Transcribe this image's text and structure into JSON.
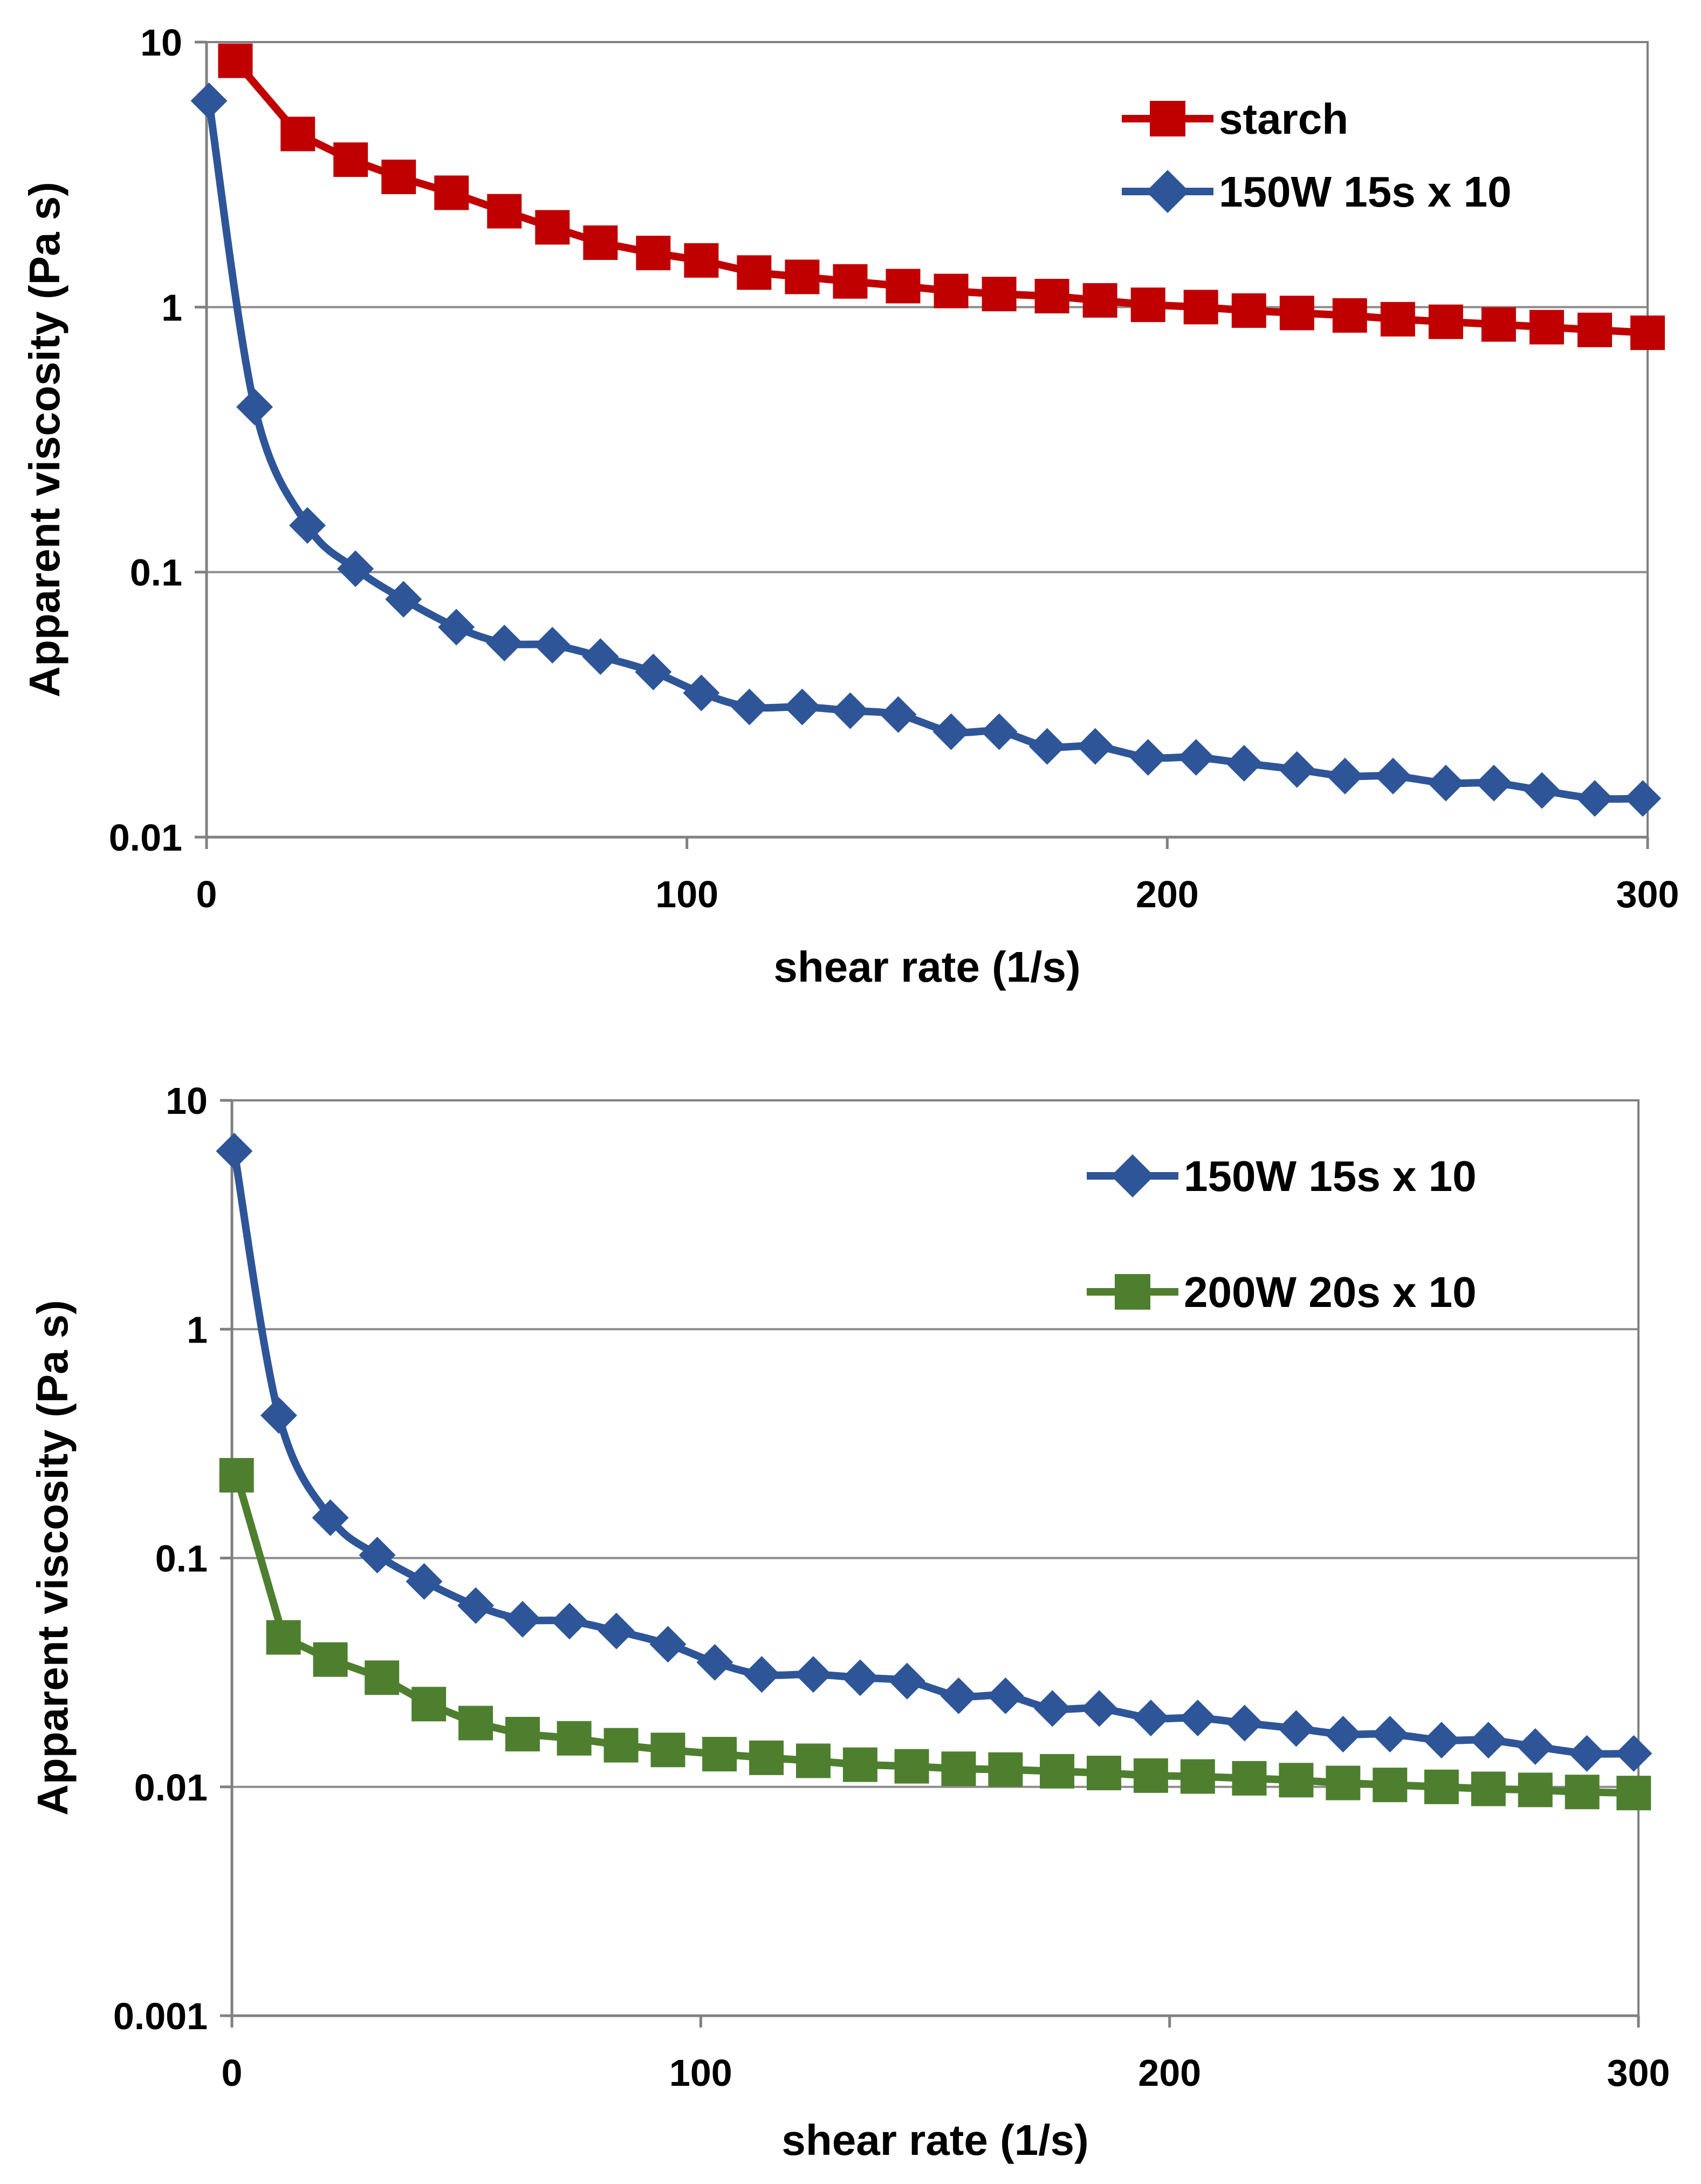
{
  "chart_data": [
    {
      "type": "line",
      "title": "",
      "xlabel": "shear rate (1/s)",
      "ylabel": "Apparent viscosity (Pa s)",
      "xlim": [
        0,
        300
      ],
      "ylim": [
        0.01,
        10
      ],
      "yscale": "log",
      "x_ticks": [
        "0",
        "100",
        "200",
        "300"
      ],
      "y_ticks": [
        "0.01",
        "0.1",
        "1",
        "10"
      ],
      "grid": "horizontal",
      "legend_position": "top-right",
      "series": [
        {
          "name": "starch",
          "color": "#C00000",
          "marker": "square",
          "smooth": false,
          "x": [
            6,
            19,
            30,
            40,
            51,
            62,
            72,
            82,
            93,
            103,
            114,
            124,
            134,
            145,
            155,
            165,
            176,
            186,
            196,
            207,
            217,
            227,
            238,
            248,
            258,
            269,
            279,
            289,
            300
          ],
          "y": [
            8.5,
            4.5,
            3.6,
            3.1,
            2.7,
            2.3,
            2.0,
            1.75,
            1.6,
            1.5,
            1.35,
            1.3,
            1.25,
            1.2,
            1.15,
            1.12,
            1.1,
            1.06,
            1.02,
            1.0,
            0.97,
            0.95,
            0.93,
            0.9,
            0.88,
            0.86,
            0.84,
            0.82,
            0.8
          ]
        },
        {
          "name": "150W 15s x 10",
          "color": "#2E5597",
          "marker": "diamond",
          "smooth": true,
          "x": [
            0.5,
            10,
            21,
            31,
            41,
            52,
            62,
            72,
            82,
            93,
            103,
            113,
            124,
            134,
            144,
            155,
            165,
            175,
            185,
            196,
            206,
            216,
            227,
            237,
            247,
            258,
            268,
            278,
            289,
            299
          ],
          "y": [
            6.0,
            0.42,
            0.15,
            0.103,
            0.079,
            0.062,
            0.054,
            0.053,
            0.048,
            0.042,
            0.035,
            0.031,
            0.031,
            0.03,
            0.029,
            0.025,
            0.025,
            0.022,
            0.022,
            0.02,
            0.02,
            0.019,
            0.018,
            0.017,
            0.017,
            0.016,
            0.016,
            0.015,
            0.014,
            0.014
          ]
        }
      ]
    },
    {
      "type": "line",
      "title": "",
      "xlabel": "shear rate (1/s)",
      "ylabel": "Apparent viscosity (Pa s)",
      "xlim": [
        0,
        300
      ],
      "ylim": [
        0.001,
        10
      ],
      "yscale": "log",
      "x_ticks": [
        "0",
        "100",
        "200",
        "300"
      ],
      "y_ticks": [
        "0.001",
        "0.01",
        "0.1",
        "1",
        "10"
      ],
      "grid": "horizontal",
      "legend_position": "top-right",
      "series": [
        {
          "name": "150W 15s x 10",
          "color": "#2E5597",
          "marker": "diamond",
          "smooth": true,
          "x": [
            0.5,
            10,
            21,
            31,
            41,
            52,
            62,
            72,
            82,
            93,
            103,
            113,
            124,
            134,
            144,
            155,
            165,
            175,
            185,
            196,
            206,
            216,
            227,
            237,
            247,
            258,
            268,
            278,
            289,
            299
          ],
          "y": [
            6.0,
            0.42,
            0.15,
            0.103,
            0.079,
            0.062,
            0.054,
            0.053,
            0.048,
            0.042,
            0.035,
            0.031,
            0.031,
            0.03,
            0.029,
            0.025,
            0.025,
            0.022,
            0.022,
            0.02,
            0.02,
            0.019,
            0.018,
            0.017,
            0.017,
            0.016,
            0.016,
            0.015,
            0.014,
            0.014
          ]
        },
        {
          "name": "200W 20s x 10",
          "color": "#4E7F2F",
          "marker": "square",
          "smooth": false,
          "x": [
            1,
            11,
            21,
            32,
            42,
            52,
            62,
            73,
            83,
            93,
            104,
            114,
            124,
            134,
            145,
            155,
            165,
            176,
            186,
            196,
            206,
            217,
            227,
            237,
            247,
            258,
            268,
            278,
            288,
            299
          ],
          "y": [
            0.23,
            0.045,
            0.036,
            0.03,
            0.023,
            0.019,
            0.017,
            0.0163,
            0.0152,
            0.0145,
            0.0139,
            0.0134,
            0.013,
            0.0125,
            0.0123,
            0.012,
            0.0119,
            0.0117,
            0.0115,
            0.0112,
            0.0111,
            0.0109,
            0.0107,
            0.0104,
            0.0102,
            0.01,
            0.0098,
            0.0097,
            0.0095,
            0.0094
          ]
        }
      ]
    }
  ]
}
